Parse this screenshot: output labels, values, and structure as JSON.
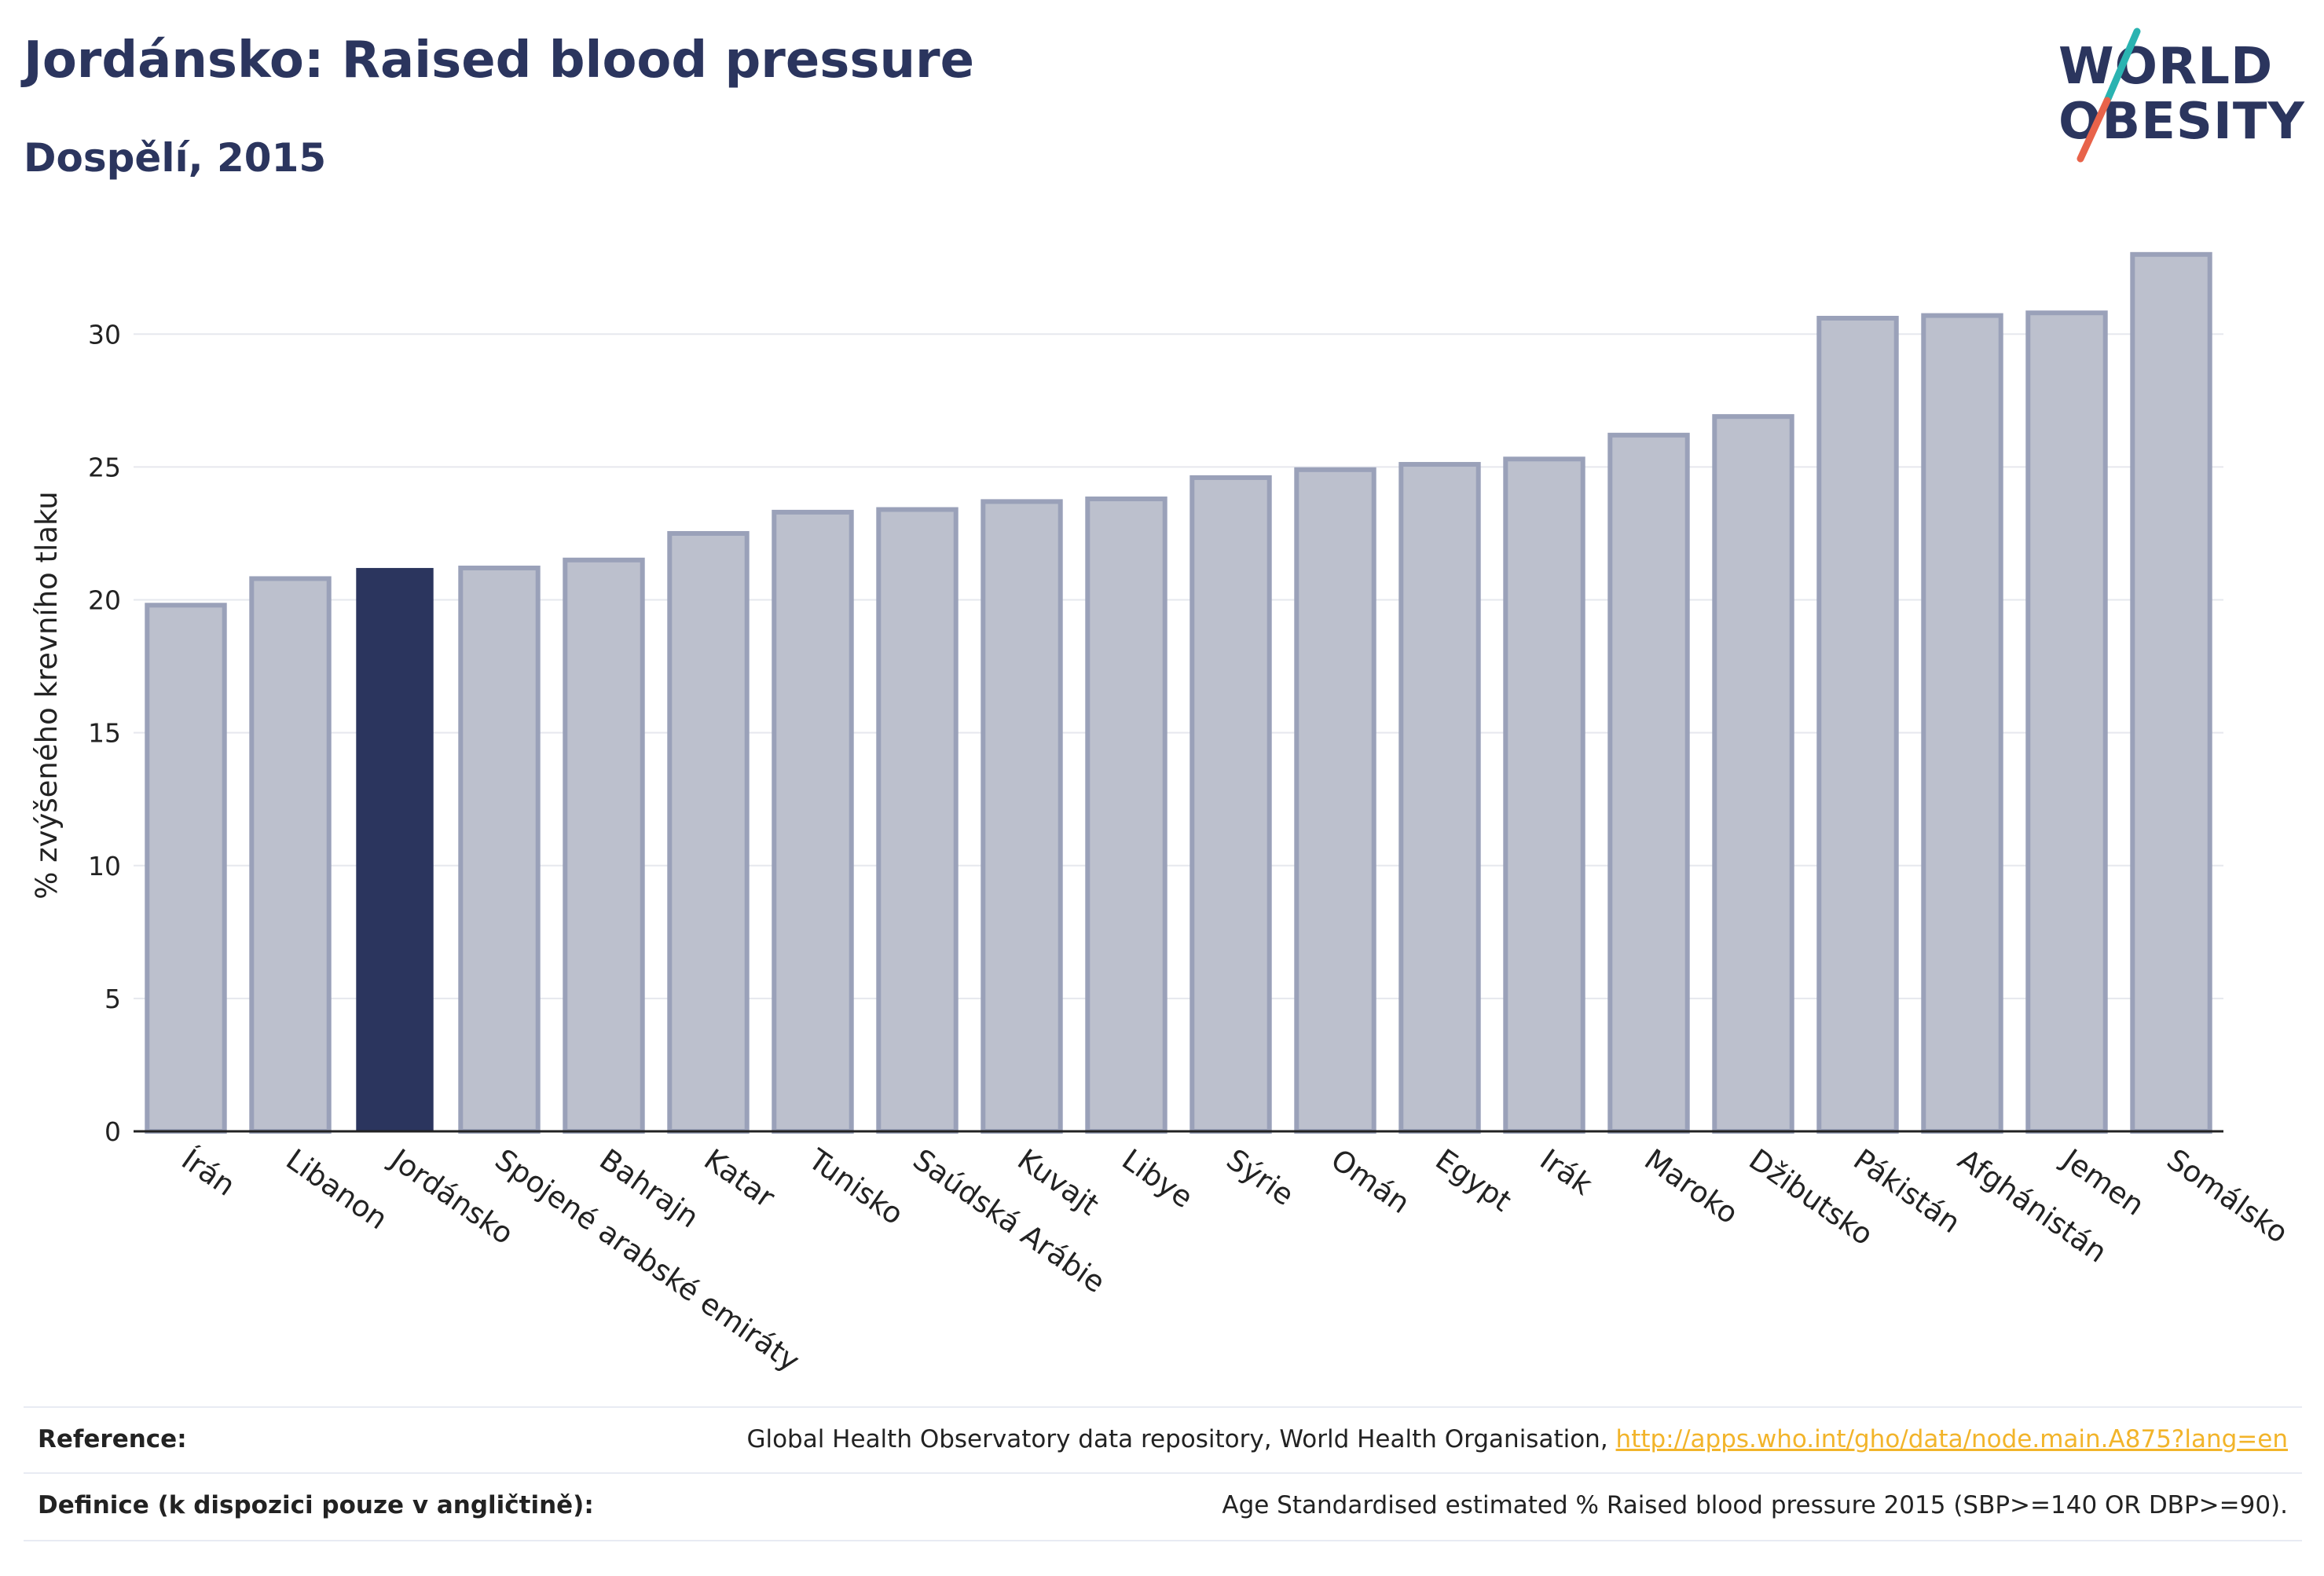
{
  "header": {
    "title": "Jordánsko: Raised blood pressure",
    "subtitle": "Dospělí, 2015"
  },
  "logo": {
    "line1": "WORLD",
    "line2": "OBESITY"
  },
  "colors": {
    "highlight": "#2b355e",
    "bar_fill": "#bcc0cd",
    "bar_stroke": "#9aa1b9",
    "grid": "#e6e8ee",
    "axis": "#222222",
    "logo_teal": "#2ab3b1",
    "logo_red": "#e8634a",
    "link": "#f2b42a"
  },
  "chart_data": {
    "type": "bar",
    "title": "Jordánsko: Raised blood pressure",
    "subtitle": "Dospělí, 2015",
    "xlabel": "",
    "ylabel": "% zvýšeného krevního tlaku",
    "ylim": [
      0,
      34
    ],
    "yticks": [
      0,
      5,
      10,
      15,
      20,
      25,
      30
    ],
    "grid": true,
    "highlight": "Jordánsko",
    "categories": [
      "Írán",
      "Libanon",
      "Jordánsko",
      "Spojené arabské emiráty",
      "Bahrajn",
      "Katar",
      "Tunisko",
      "Saúdská Arábie",
      "Kuvajt",
      "Libye",
      "Sýrie",
      "Omán",
      "Egypt",
      "Irák",
      "Maroko",
      "Džibutsko",
      "Pákistán",
      "Afghánistán",
      "Jemen",
      "Somálsko"
    ],
    "values": [
      19.8,
      20.8,
      21.2,
      21.2,
      21.5,
      22.5,
      23.3,
      23.4,
      23.7,
      23.8,
      24.6,
      24.9,
      25.1,
      25.3,
      26.2,
      26.9,
      30.6,
      30.7,
      30.8,
      33.0
    ]
  },
  "footer": {
    "reference_label": "Reference:",
    "reference_text": "Global Health Observatory data repository, World Health Organisation, ",
    "reference_link": "http://apps.who.int/gho/data/node.main.A875?lang=en",
    "definition_label": "Definice (k dispozici pouze v angličtině):",
    "definition_text": "Age Standardised estimated % Raised blood pressure 2015 (SBP>=140 OR DBP>=90)."
  }
}
